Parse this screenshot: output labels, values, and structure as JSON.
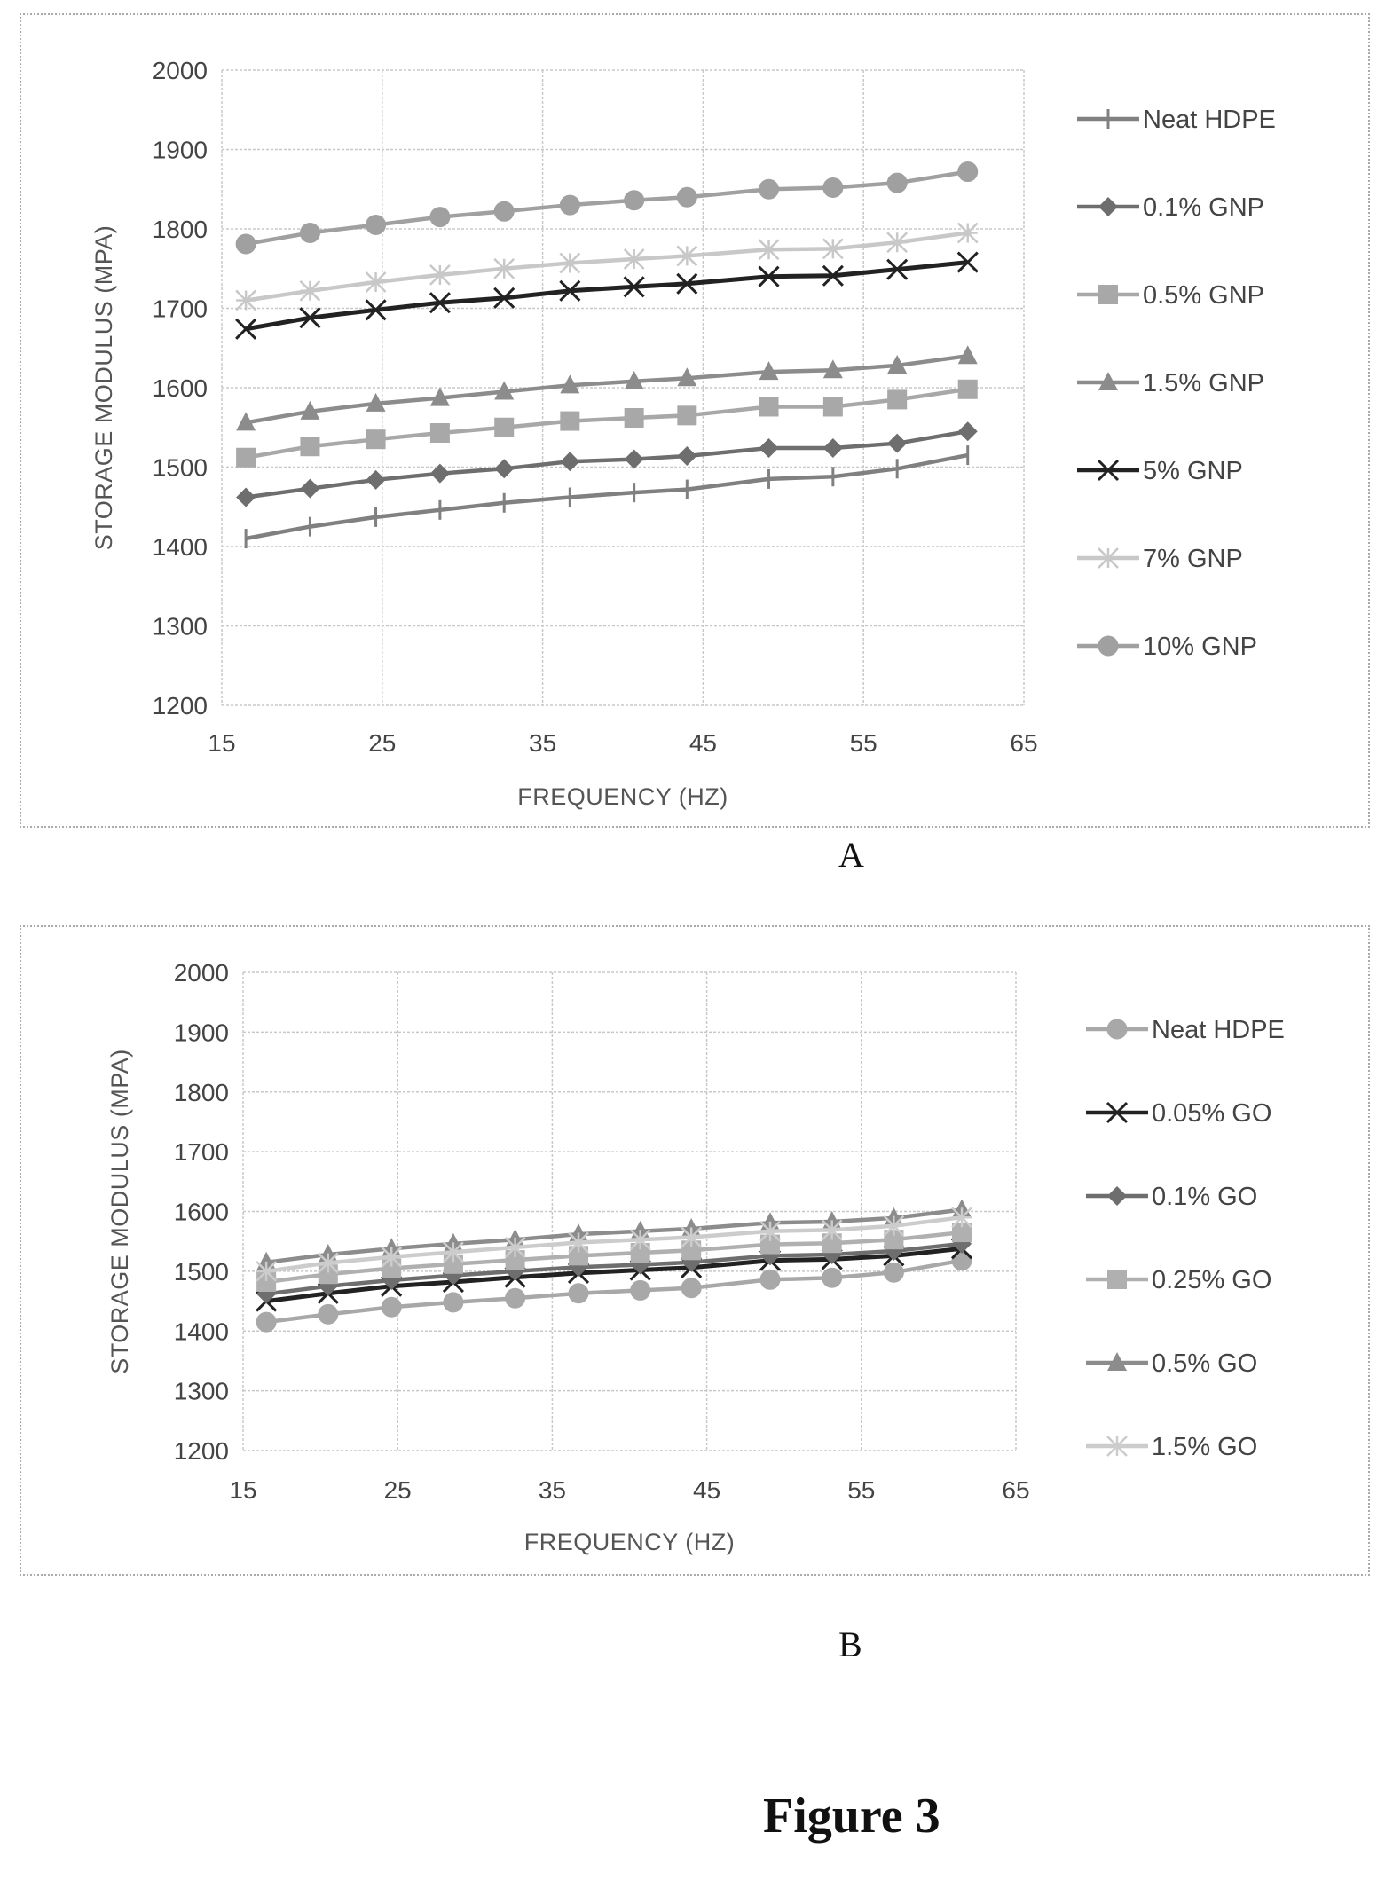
{
  "figure_title": "Figure 3",
  "chart_data": [
    {
      "panel_label": "A",
      "type": "line",
      "xlabel": "FREQUENCY (HZ)",
      "ylabel": "STORAGE MODULUS (MPA)",
      "xlim": [
        15,
        65
      ],
      "ylim": [
        1200,
        2000
      ],
      "xticks": [
        15,
        25,
        35,
        45,
        55,
        65
      ],
      "yticks": [
        1200,
        1300,
        1400,
        1500,
        1600,
        1700,
        1800,
        1900,
        2000
      ],
      "grid": true,
      "legend_position": "right",
      "x": [
        16.5,
        20.5,
        24.6,
        28.6,
        32.6,
        36.7,
        40.7,
        44.0,
        49.1,
        53.1,
        57.1,
        61.5
      ],
      "series": [
        {
          "name": "Neat HDPE",
          "marker": "plus",
          "color": "#808080",
          "values": [
            1410,
            1425,
            1437,
            1446,
            1455,
            1462,
            1468,
            1472,
            1485,
            1488,
            1498,
            1515
          ]
        },
        {
          "name": "0.1% GNP",
          "marker": "diamond",
          "color": "#6e6e6e",
          "values": [
            1462,
            1473,
            1484,
            1492,
            1498,
            1507,
            1510,
            1514,
            1524,
            1524,
            1530,
            1545
          ]
        },
        {
          "name": "0.5% GNP",
          "marker": "square",
          "color": "#a8a8a8",
          "values": [
            1512,
            1526,
            1535,
            1543,
            1550,
            1558,
            1562,
            1565,
            1576,
            1576,
            1585,
            1598
          ]
        },
        {
          "name": "1.5% GNP",
          "marker": "triangle",
          "color": "#8c8c8c",
          "values": [
            1556,
            1570,
            1580,
            1587,
            1595,
            1603,
            1608,
            1612,
            1620,
            1622,
            1628,
            1640
          ]
        },
        {
          "name": "5% GNP",
          "marker": "x",
          "color": "#222222",
          "values": [
            1674,
            1688,
            1698,
            1707,
            1713,
            1722,
            1727,
            1731,
            1740,
            1741,
            1749,
            1758
          ]
        },
        {
          "name": "7% GNP",
          "marker": "star",
          "color": "#c8c8c8",
          "values": [
            1710,
            1722,
            1733,
            1742,
            1750,
            1757,
            1762,
            1766,
            1774,
            1775,
            1783,
            1795
          ]
        },
        {
          "name": "10% GNP",
          "marker": "circle",
          "color": "#a0a0a0",
          "values": [
            1781,
            1795,
            1805,
            1815,
            1822,
            1830,
            1836,
            1840,
            1850,
            1852,
            1858,
            1872
          ]
        }
      ]
    },
    {
      "panel_label": "B",
      "type": "line",
      "xlabel": "FREQUENCY (HZ)",
      "ylabel": "STORAGE MODULUS (MPA)",
      "xlim": [
        15,
        65
      ],
      "ylim": [
        1200,
        2000
      ],
      "xticks": [
        15,
        25,
        35,
        45,
        55,
        65
      ],
      "yticks": [
        1200,
        1300,
        1400,
        1500,
        1600,
        1700,
        1800,
        1900,
        2000
      ],
      "grid": true,
      "legend_position": "right",
      "x": [
        16.5,
        20.5,
        24.6,
        28.6,
        32.6,
        36.7,
        40.7,
        44.0,
        49.1,
        53.1,
        57.1,
        61.5
      ],
      "series": [
        {
          "name": "Neat HDPE",
          "marker": "circle",
          "color": "#a8a8a8",
          "values": [
            1415,
            1428,
            1440,
            1448,
            1455,
            1463,
            1468,
            1472,
            1486,
            1489,
            1498,
            1518
          ]
        },
        {
          "name": "0.05% GO",
          "marker": "x",
          "color": "#222222",
          "values": [
            1450,
            1463,
            1475,
            1482,
            1490,
            1497,
            1502,
            1506,
            1518,
            1520,
            1526,
            1538
          ]
        },
        {
          "name": "0.1% GO",
          "marker": "diamond",
          "color": "#6e6e6e",
          "values": [
            1462,
            1475,
            1485,
            1493,
            1500,
            1507,
            1511,
            1515,
            1526,
            1528,
            1534,
            1546
          ]
        },
        {
          "name": "0.25% GO",
          "marker": "square",
          "color": "#b0b0b0",
          "values": [
            1482,
            1495,
            1505,
            1512,
            1519,
            1526,
            1531,
            1535,
            1545,
            1547,
            1553,
            1565
          ]
        },
        {
          "name": "0.5% GO",
          "marker": "triangle",
          "color": "#8c8c8c",
          "values": [
            1515,
            1528,
            1538,
            1546,
            1553,
            1562,
            1567,
            1571,
            1581,
            1583,
            1589,
            1603
          ]
        },
        {
          "name": "1.5% GO",
          "marker": "star",
          "color": "#cccccc",
          "values": [
            1500,
            1514,
            1524,
            1532,
            1540,
            1548,
            1553,
            1557,
            1567,
            1569,
            1576,
            1590
          ]
        }
      ]
    }
  ]
}
